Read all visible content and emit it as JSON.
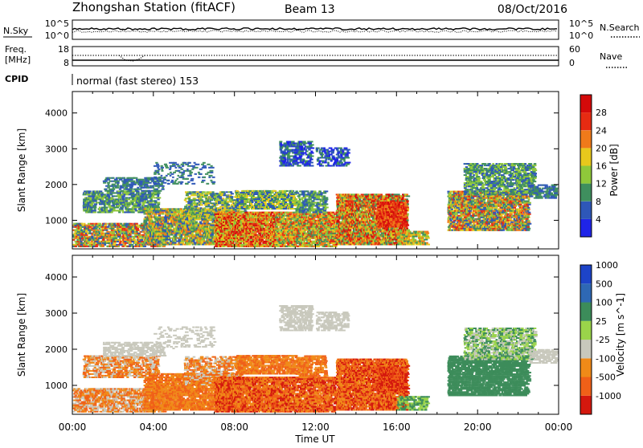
{
  "header": {
    "station": "Zhongshan Station (fitACF)",
    "beam": "Beam 13",
    "date": "08/Oct/2016"
  },
  "top_panels": {
    "nsky": {
      "left_label": "N.Sky",
      "left_ticks": [
        "10^5",
        "10^0"
      ],
      "right_ticks": [
        "10^5",
        "10^0"
      ],
      "right_label": "N.Search"
    },
    "freq": {
      "left_label_1": "Freq.",
      "left_label_2": "[MHz]",
      "left_ticks": [
        "18",
        "8"
      ],
      "right_ticks": [
        "60",
        "0"
      ],
      "right_label": "Nave"
    },
    "cpid": {
      "label": "CPID",
      "value": "normal (fast stereo) 153"
    }
  },
  "colors": {
    "power": [
      "#1f24e8",
      "#2e57b8",
      "#3f8f5e",
      "#8fc83a",
      "#e8c81c",
      "#f07a1a",
      "#e62b12",
      "#d40a0a"
    ],
    "velocity": [
      "#d4180e",
      "#f06018",
      "#f08a18",
      "#c8c8bc",
      "#9ad44a",
      "#3c8c5a",
      "#2e68b4",
      "#1d44c8"
    ]
  },
  "chart_data": [
    {
      "type": "heatmap",
      "ylabel": "Slant Range [km]",
      "xlabel": "Time UT",
      "x_ticks": [
        "00:00",
        "04:00",
        "08:00",
        "12:00",
        "16:00",
        "20:00",
        "00:00"
      ],
      "y_ticks": [
        1000,
        2000,
        3000,
        4000
      ],
      "ylim": [
        200,
        4600
      ],
      "xlim_hours": [
        0,
        24
      ],
      "colorbar": {
        "label": "Power [dB]",
        "ticks": [
          "4",
          "8",
          "12",
          "16",
          "20",
          "24",
          "28"
        ]
      }
    },
    {
      "type": "heatmap",
      "ylabel": "Slant Range [km]",
      "xlabel": "Time UT",
      "x_ticks": [
        "00:00",
        "04:00",
        "08:00",
        "12:00",
        "16:00",
        "20:00",
        "00:00"
      ],
      "y_ticks": [
        1000,
        2000,
        3000,
        4000
      ],
      "ylim": [
        200,
        4600
      ],
      "xlim_hours": [
        0,
        24
      ],
      "colorbar": {
        "label": "Velocity [m s^-1]",
        "ticks": [
          "-1000",
          "-500",
          "-100",
          "-25",
          "25",
          "100",
          "500",
          "1000"
        ]
      }
    }
  ]
}
